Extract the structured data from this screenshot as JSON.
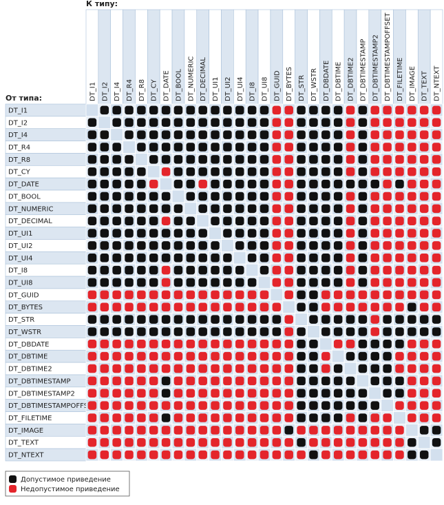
{
  "header": {
    "to_label": "К типу:",
    "from_label": "От типа:"
  },
  "types": [
    "DT_I1",
    "DT_I2",
    "DT_I4",
    "DT_R4",
    "DT_R8",
    "DT_CY",
    "DT_DATE",
    "DT_BOOL",
    "DT_NUMERIC",
    "DT_DECIMAL",
    "DT_UI1",
    "DT_UI2",
    "DT_UI4",
    "DT_I8",
    "DT_UI8",
    "DT_GUID",
    "DT_BYTES",
    "DT_STR",
    "DT_WSTR",
    "DT_DBDATE",
    "DT_DBTIME",
    "DT_DBTIME2",
    "DT_DBTIMESTAMP",
    "DT_DBTIMESTAMP2",
    "DT_DBTIMESTAMPOFFSET",
    "DT_FILETIME",
    "DT_IMAGE",
    "DT_TEXT",
    "DT_NTEXT"
  ],
  "matrix": [
    [
      null,
      true,
      true,
      true,
      true,
      true,
      true,
      true,
      true,
      true,
      true,
      true,
      true,
      true,
      true,
      false,
      false,
      true,
      true,
      true,
      true,
      false,
      true,
      false,
      false,
      false,
      false,
      false,
      false
    ],
    [
      true,
      null,
      true,
      true,
      true,
      true,
      true,
      true,
      true,
      true,
      true,
      true,
      true,
      true,
      true,
      false,
      false,
      true,
      true,
      true,
      true,
      false,
      true,
      false,
      false,
      false,
      false,
      false,
      false
    ],
    [
      true,
      true,
      null,
      true,
      true,
      true,
      true,
      true,
      true,
      true,
      true,
      true,
      true,
      true,
      true,
      false,
      false,
      true,
      true,
      true,
      true,
      false,
      true,
      false,
      false,
      false,
      false,
      false,
      false
    ],
    [
      true,
      true,
      true,
      null,
      true,
      true,
      true,
      true,
      true,
      true,
      true,
      true,
      true,
      true,
      true,
      false,
      false,
      true,
      true,
      true,
      true,
      false,
      true,
      false,
      false,
      false,
      false,
      false,
      false
    ],
    [
      true,
      true,
      true,
      true,
      null,
      true,
      true,
      true,
      true,
      true,
      true,
      true,
      true,
      true,
      true,
      false,
      false,
      true,
      true,
      true,
      true,
      false,
      true,
      false,
      false,
      false,
      false,
      false,
      false
    ],
    [
      true,
      true,
      true,
      true,
      true,
      null,
      false,
      true,
      true,
      true,
      true,
      true,
      true,
      true,
      true,
      false,
      false,
      true,
      true,
      true,
      true,
      false,
      true,
      false,
      false,
      false,
      false,
      false,
      false
    ],
    [
      true,
      true,
      true,
      true,
      true,
      false,
      null,
      true,
      true,
      false,
      true,
      true,
      true,
      true,
      true,
      false,
      false,
      true,
      true,
      true,
      true,
      true,
      true,
      true,
      false,
      true,
      false,
      false,
      false
    ],
    [
      true,
      true,
      true,
      true,
      true,
      true,
      true,
      null,
      true,
      true,
      true,
      true,
      true,
      true,
      true,
      false,
      false,
      true,
      true,
      true,
      true,
      false,
      true,
      false,
      false,
      false,
      false,
      false,
      false
    ],
    [
      true,
      true,
      true,
      true,
      true,
      true,
      true,
      true,
      null,
      true,
      true,
      true,
      true,
      true,
      true,
      false,
      false,
      true,
      true,
      true,
      true,
      false,
      true,
      false,
      false,
      false,
      false,
      false,
      false
    ],
    [
      true,
      true,
      true,
      true,
      true,
      true,
      false,
      true,
      true,
      null,
      true,
      true,
      true,
      true,
      true,
      false,
      false,
      true,
      true,
      true,
      true,
      false,
      true,
      false,
      false,
      false,
      false,
      false,
      false
    ],
    [
      true,
      true,
      true,
      true,
      true,
      true,
      true,
      true,
      true,
      true,
      null,
      true,
      true,
      true,
      true,
      false,
      false,
      true,
      true,
      true,
      true,
      false,
      true,
      false,
      false,
      false,
      false,
      false,
      false
    ],
    [
      true,
      true,
      true,
      true,
      true,
      true,
      true,
      true,
      true,
      true,
      true,
      null,
      true,
      true,
      true,
      false,
      false,
      true,
      true,
      true,
      true,
      false,
      true,
      false,
      false,
      false,
      false,
      false,
      false
    ],
    [
      true,
      true,
      true,
      true,
      true,
      true,
      true,
      true,
      true,
      true,
      true,
      true,
      null,
      true,
      true,
      false,
      false,
      true,
      true,
      true,
      true,
      false,
      true,
      false,
      false,
      false,
      false,
      false,
      false
    ],
    [
      true,
      true,
      true,
      true,
      true,
      true,
      false,
      true,
      true,
      true,
      true,
      true,
      true,
      null,
      true,
      false,
      false,
      true,
      true,
      true,
      true,
      false,
      true,
      false,
      false,
      false,
      false,
      false,
      false
    ],
    [
      true,
      true,
      true,
      true,
      true,
      true,
      false,
      true,
      true,
      true,
      true,
      true,
      true,
      true,
      null,
      false,
      false,
      true,
      true,
      true,
      true,
      false,
      true,
      false,
      false,
      false,
      false,
      false,
      false
    ],
    [
      false,
      false,
      false,
      false,
      false,
      false,
      false,
      false,
      false,
      false,
      false,
      false,
      false,
      false,
      false,
      null,
      false,
      true,
      true,
      false,
      false,
      false,
      false,
      false,
      false,
      false,
      false,
      false,
      false
    ],
    [
      false,
      false,
      false,
      false,
      false,
      false,
      false,
      false,
      false,
      false,
      false,
      false,
      false,
      false,
      false,
      false,
      null,
      true,
      true,
      false,
      false,
      false,
      false,
      false,
      false,
      false,
      true,
      false,
      false
    ],
    [
      true,
      true,
      true,
      true,
      true,
      true,
      true,
      true,
      true,
      true,
      true,
      true,
      true,
      true,
      true,
      true,
      false,
      null,
      true,
      true,
      true,
      true,
      true,
      false,
      true,
      true,
      true,
      true,
      true
    ],
    [
      true,
      true,
      true,
      true,
      true,
      true,
      true,
      true,
      true,
      true,
      true,
      true,
      true,
      true,
      true,
      true,
      false,
      true,
      null,
      true,
      true,
      true,
      true,
      false,
      true,
      true,
      true,
      true,
      true
    ],
    [
      false,
      false,
      false,
      false,
      false,
      false,
      false,
      false,
      false,
      false,
      false,
      false,
      false,
      false,
      false,
      false,
      false,
      true,
      true,
      null,
      false,
      false,
      true,
      true,
      true,
      true,
      false,
      false,
      false
    ],
    [
      false,
      false,
      false,
      false,
      false,
      false,
      false,
      false,
      false,
      false,
      false,
      false,
      false,
      false,
      false,
      false,
      false,
      true,
      true,
      false,
      null,
      true,
      true,
      true,
      true,
      false,
      false,
      false,
      false
    ],
    [
      false,
      false,
      false,
      false,
      false,
      false,
      false,
      false,
      false,
      false,
      false,
      false,
      false,
      false,
      false,
      false,
      false,
      true,
      true,
      false,
      true,
      null,
      true,
      true,
      true,
      false,
      false,
      false,
      false
    ],
    [
      false,
      false,
      false,
      false,
      false,
      false,
      true,
      false,
      false,
      false,
      false,
      false,
      false,
      false,
      false,
      false,
      false,
      true,
      true,
      true,
      true,
      true,
      null,
      true,
      true,
      true,
      false,
      false,
      false
    ],
    [
      false,
      false,
      false,
      false,
      false,
      false,
      true,
      false,
      false,
      false,
      false,
      false,
      false,
      false,
      false,
      false,
      false,
      true,
      true,
      true,
      true,
      true,
      true,
      null,
      true,
      true,
      false,
      false,
      false
    ],
    [
      false,
      false,
      false,
      false,
      false,
      false,
      false,
      false,
      false,
      false,
      false,
      false,
      false,
      false,
      false,
      false,
      false,
      true,
      true,
      true,
      true,
      true,
      true,
      true,
      null,
      false,
      false,
      false,
      false
    ],
    [
      false,
      false,
      false,
      false,
      false,
      false,
      true,
      false,
      false,
      false,
      false,
      false,
      false,
      false,
      false,
      false,
      false,
      true,
      true,
      true,
      true,
      false,
      true,
      false,
      false,
      null,
      false,
      false,
      false
    ],
    [
      false,
      false,
      false,
      false,
      false,
      false,
      false,
      false,
      false,
      false,
      false,
      false,
      false,
      false,
      false,
      false,
      true,
      false,
      false,
      false,
      false,
      false,
      false,
      false,
      false,
      false,
      null,
      true,
      true
    ],
    [
      false,
      false,
      false,
      false,
      false,
      false,
      false,
      false,
      false,
      false,
      false,
      false,
      false,
      false,
      false,
      false,
      false,
      true,
      false,
      false,
      false,
      false,
      false,
      false,
      false,
      false,
      true,
      null,
      true
    ],
    [
      false,
      false,
      false,
      false,
      false,
      false,
      false,
      false,
      false,
      false,
      false,
      false,
      false,
      false,
      false,
      false,
      false,
      false,
      true,
      false,
      false,
      false,
      false,
      false,
      false,
      false,
      true,
      true,
      null
    ]
  ],
  "legend": [
    {
      "label": "Допустимое приведение",
      "color": "#111111"
    },
    {
      "label": "Недопустимое приведение",
      "color": "#e4252b"
    }
  ]
}
